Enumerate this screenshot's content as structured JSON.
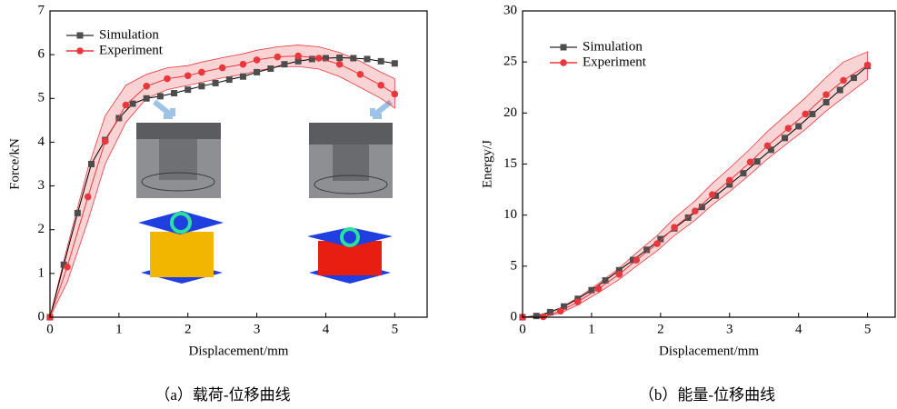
{
  "chart_data": [
    {
      "type": "line",
      "caption": "（a）载荷-位移曲线",
      "x_label": "Displacement/mm",
      "y_label": "Force/kN",
      "xlim": [
        0,
        5.47
      ],
      "ylim": [
        0,
        7
      ],
      "xticks": [
        0,
        1,
        2,
        3,
        4,
        5
      ],
      "yticks": [
        0,
        1,
        2,
        3,
        4,
        5,
        6,
        7
      ],
      "legend": "upper left",
      "series": [
        {
          "name": "Simulation",
          "color": "#4d4d4d",
          "marker": "square",
          "x": [
            0,
            0.2,
            0.4,
            0.6,
            0.8,
            1.0,
            1.2,
            1.4,
            1.6,
            1.8,
            2.0,
            2.2,
            2.4,
            2.6,
            2.8,
            3.0,
            3.2,
            3.4,
            3.6,
            3.8,
            4.0,
            4.2,
            4.4,
            4.6,
            4.8,
            5.0
          ],
          "values": [
            0,
            1.2,
            2.38,
            3.5,
            4.05,
            4.55,
            4.88,
            5.0,
            5.05,
            5.12,
            5.2,
            5.28,
            5.35,
            5.43,
            5.5,
            5.6,
            5.68,
            5.78,
            5.85,
            5.9,
            5.92,
            5.93,
            5.92,
            5.9,
            5.85,
            5.8
          ]
        },
        {
          "name": "Experiment",
          "color": "#e8383d",
          "marker": "circle",
          "x": [
            0,
            0.25,
            0.55,
            0.8,
            1.1,
            1.4,
            1.7,
            2.0,
            2.2,
            2.5,
            2.8,
            3.0,
            3.3,
            3.6,
            3.9,
            4.2,
            4.5,
            4.8,
            5.0
          ],
          "values": [
            0,
            1.15,
            2.75,
            4.02,
            4.85,
            5.28,
            5.45,
            5.52,
            5.6,
            5.7,
            5.78,
            5.88,
            5.95,
            5.97,
            5.92,
            5.78,
            5.55,
            5.3,
            5.1
          ],
          "upper": [
            0,
            1.6,
            3.4,
            4.6,
            5.3,
            5.55,
            5.7,
            5.75,
            5.83,
            5.93,
            6.02,
            6.1,
            6.18,
            6.22,
            6.18,
            6.05,
            5.85,
            5.6,
            5.45
          ],
          "lower": [
            0,
            0.8,
            2.2,
            3.5,
            4.45,
            5.0,
            5.2,
            5.3,
            5.37,
            5.47,
            5.55,
            5.63,
            5.72,
            5.73,
            5.67,
            5.5,
            5.25,
            5.0,
            4.78
          ]
        }
      ]
    },
    {
      "type": "line",
      "caption": "（b）能量-位移曲线",
      "x_label": "Displacement/mm",
      "y_label": "Energy/J",
      "xlim": [
        0,
        5.4
      ],
      "ylim": [
        0,
        30
      ],
      "xticks": [
        0,
        1,
        2,
        3,
        4,
        5
      ],
      "yticks": [
        0,
        5,
        10,
        15,
        20,
        25,
        30
      ],
      "legend": "upper left",
      "series": [
        {
          "name": "Simulation",
          "color": "#4d4d4d",
          "marker": "square",
          "x": [
            0,
            0.2,
            0.4,
            0.6,
            0.8,
            1.0,
            1.2,
            1.4,
            1.6,
            1.8,
            2.0,
            2.2,
            2.4,
            2.6,
            2.8,
            3.0,
            3.2,
            3.4,
            3.6,
            3.8,
            4.0,
            4.2,
            4.4,
            4.6,
            4.8,
            5.0
          ],
          "values": [
            0,
            0.12,
            0.5,
            1.05,
            1.8,
            2.65,
            3.6,
            4.6,
            5.6,
            6.6,
            7.65,
            8.7,
            9.75,
            10.8,
            11.9,
            13.0,
            14.1,
            15.25,
            16.4,
            17.55,
            18.7,
            19.9,
            21.05,
            22.25,
            23.45,
            24.6
          ]
        },
        {
          "name": "Experiment",
          "color": "#e8383d",
          "marker": "circle",
          "x": [
            0,
            0.3,
            0.55,
            0.8,
            1.1,
            1.4,
            1.65,
            1.95,
            2.2,
            2.5,
            2.75,
            3.0,
            3.3,
            3.55,
            3.85,
            4.1,
            4.4,
            4.65,
            5.0
          ],
          "values": [
            0,
            0.05,
            0.6,
            1.5,
            2.8,
            4.2,
            5.6,
            7.2,
            8.8,
            10.4,
            12.0,
            13.4,
            15.2,
            16.8,
            18.5,
            19.9,
            21.8,
            23.2,
            24.7
          ],
          "upper": [
            0,
            0.2,
            0.9,
            1.9,
            3.3,
            4.8,
            6.3,
            8.0,
            9.7,
            11.4,
            13.1,
            14.6,
            16.5,
            18.2,
            20.0,
            21.5,
            23.5,
            25.0,
            26.0
          ],
          "lower": [
            0,
            0,
            0.4,
            1.2,
            2.4,
            3.7,
            5.0,
            6.5,
            8.0,
            9.5,
            11.0,
            12.3,
            14.0,
            15.5,
            17.1,
            18.4,
            20.2,
            21.5,
            23.3
          ]
        }
      ]
    }
  ]
}
